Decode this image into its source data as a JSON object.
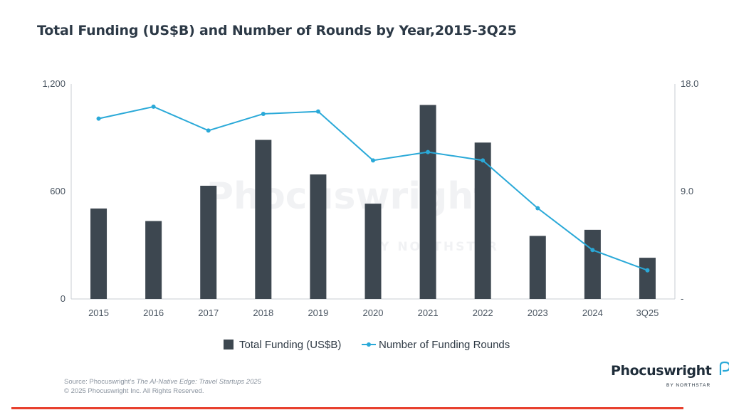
{
  "title": "Total Funding (US$B) and Number of Rounds by Year,2015-3Q25",
  "chart_data": {
    "type": "bar",
    "title": "Total Funding (US$B) and Number of Rounds by Year,2015-3Q25",
    "categories": [
      "2015",
      "2016",
      "2017",
      "2018",
      "2019",
      "2020",
      "2021",
      "2022",
      "2023",
      "2024",
      "3Q25"
    ],
    "series": [
      {
        "name": "Total Funding (US$B)",
        "type": "bar",
        "axis": "left",
        "color": "#3d4750",
        "values": [
          505,
          435,
          632,
          888,
          695,
          532,
          1083,
          873,
          352,
          386,
          230
        ]
      },
      {
        "name": "Number of Funding Rounds",
        "type": "line",
        "axis": "right",
        "color": "#2aa9d8",
        "values": [
          15.1,
          16.1,
          14.1,
          15.5,
          15.7,
          11.6,
          12.3,
          11.6,
          7.6,
          4.1,
          2.4
        ]
      }
    ],
    "y_left": {
      "ylim": [
        0,
        1200
      ],
      "ticks": [
        "0",
        "600",
        "1,200"
      ]
    },
    "y_right": {
      "ylim": [
        0,
        18
      ],
      "ticks": [
        "-",
        "9.0",
        "18.0"
      ]
    },
    "grid": false,
    "legend": "bottom"
  },
  "watermark": {
    "main": "Phocuswright",
    "sub": "BY NORTHSTAR"
  },
  "source": {
    "prefix": "Source: Phocuswright's ",
    "italic": "The AI-Native Edge: Travel Startups 2025",
    "copyright": "© 2025 Phocuswright Inc. All Rights Reserved."
  },
  "logo": {
    "name": "Phocuswright",
    "tagline": "BY NORTHSTAR"
  },
  "colors": {
    "accent_line": "#e8402d",
    "bar": "#3d4750",
    "line": "#2aa9d8"
  }
}
